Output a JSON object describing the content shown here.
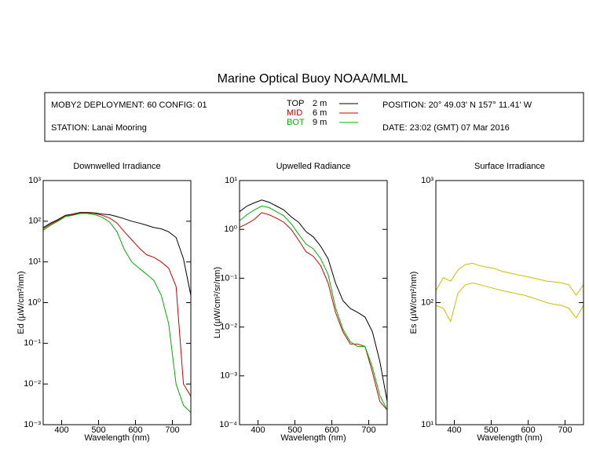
{
  "title": "Marine Optical Buoy NOAA/MLML",
  "info": {
    "deployment": "MOBY2 DEPLOYMENT: 60 CONFIG: 01",
    "station": "STATION: Lanai Mooring",
    "position": "POSITION: 20° 49.03' N  157° 11.41' W",
    "date": "DATE: 23:02 (GMT) 07 Mar 2016"
  },
  "legend": [
    {
      "name": "TOP",
      "depth": "2 m",
      "color": "#000000"
    },
    {
      "name": "MID",
      "depth": "6 m",
      "color": "#cc0000"
    },
    {
      "name": "BOT",
      "depth": "9 m",
      "color": "#00b000"
    }
  ],
  "chart_data": [
    {
      "type": "line",
      "title": "Downwelled Irradiance",
      "x_label": "Wavelength (nm)",
      "y_label": "Ed  (µW/cm²/nm)",
      "log_y": true,
      "x": [
        350,
        370,
        390,
        410,
        430,
        450,
        470,
        490,
        510,
        530,
        550,
        570,
        590,
        610,
        630,
        650,
        670,
        690,
        710,
        730,
        750
      ],
      "xlim": [
        350,
        750
      ],
      "xticks": [
        400,
        500,
        600,
        700
      ],
      "ylim": [
        0.001,
        1000
      ],
      "yticks": [
        {
          "value": 1000,
          "label": "10³"
        },
        {
          "value": 100,
          "label": "10²"
        },
        {
          "value": 10,
          "label": "10¹"
        },
        {
          "value": 1,
          "label": "10⁰"
        },
        {
          "value": 0.1,
          "label": "10⁻¹"
        },
        {
          "value": 0.01,
          "label": "10⁻²"
        },
        {
          "value": 0.001,
          "label": "10⁻³"
        }
      ],
      "series": [
        {
          "color": "#000000",
          "values": [
            70,
            90,
            110,
            140,
            150,
            165,
            165,
            160,
            150,
            145,
            130,
            115,
            100,
            90,
            80,
            70,
            65,
            55,
            40,
            12,
            1.5
          ]
        },
        {
          "color": "#cc0000",
          "values": [
            65,
            85,
            105,
            135,
            145,
            160,
            160,
            155,
            140,
            120,
            90,
            55,
            35,
            22,
            15,
            13,
            10,
            7,
            2.5,
            0.01,
            0.005
          ]
        },
        {
          "color": "#00b000",
          "values": [
            60,
            80,
            100,
            130,
            140,
            155,
            155,
            145,
            125,
            95,
            55,
            20,
            10,
            7,
            5,
            3.5,
            1.5,
            0.3,
            0.01,
            0.003,
            0.002
          ]
        }
      ]
    },
    {
      "type": "line",
      "title": "Upwelled Radiance",
      "x_label": "Wavelength (nm)",
      "y_label": "Lu  (µW/cm²/sr/nm)",
      "log_y": true,
      "x": [
        350,
        370,
        390,
        410,
        430,
        450,
        470,
        490,
        510,
        530,
        550,
        570,
        590,
        610,
        630,
        650,
        670,
        690,
        710,
        730,
        750
      ],
      "xlim": [
        350,
        750
      ],
      "xticks": [
        400,
        500,
        600,
        700
      ],
      "ylim": [
        0.0001,
        10
      ],
      "yticks": [
        {
          "value": 10,
          "label": "10¹"
        },
        {
          "value": 1,
          "label": "10⁰"
        },
        {
          "value": 0.1,
          "label": "10⁻¹"
        },
        {
          "value": 0.01,
          "label": "10⁻²"
        },
        {
          "value": 0.001,
          "label": "10⁻³"
        },
        {
          "value": 0.0001,
          "label": "10⁻⁴"
        }
      ],
      "series": [
        {
          "color": "#000000",
          "values": [
            2.3,
            3.0,
            3.5,
            4.0,
            3.6,
            3.0,
            2.5,
            1.8,
            1.4,
            0.9,
            0.7,
            0.45,
            0.25,
            0.08,
            0.035,
            0.024,
            0.02,
            0.016,
            0.008,
            0.002,
            0.0003
          ]
        },
        {
          "color": "#cc0000",
          "values": [
            1.1,
            1.3,
            1.6,
            2.2,
            2.0,
            1.7,
            1.4,
            1.0,
            0.6,
            0.35,
            0.28,
            0.18,
            0.08,
            0.02,
            0.008,
            0.0045,
            0.0045,
            0.004,
            0.0012,
            0.0003,
            0.0002
          ]
        },
        {
          "color": "#00b000",
          "values": [
            1.5,
            2.0,
            2.5,
            3.0,
            2.8,
            2.3,
            1.9,
            1.3,
            0.8,
            0.5,
            0.4,
            0.25,
            0.12,
            0.025,
            0.009,
            0.005,
            0.004,
            0.004,
            0.0015,
            0.0004,
            0.0002
          ]
        }
      ]
    },
    {
      "type": "line",
      "title": "Surface Irradiance",
      "x_label": "Wavelength (nm)",
      "y_label": "Es  (µW/cm²/nm)",
      "log_y": true,
      "x": [
        350,
        370,
        390,
        410,
        430,
        450,
        470,
        490,
        510,
        530,
        550,
        570,
        590,
        610,
        630,
        650,
        670,
        690,
        710,
        730,
        750
      ],
      "xlim": [
        350,
        750
      ],
      "xticks": [
        400,
        500,
        600,
        700
      ],
      "ylim": [
        10,
        1000
      ],
      "yticks": [
        {
          "value": 1000,
          "label": "10³"
        },
        {
          "value": 100,
          "label": "10²"
        },
        {
          "value": 10,
          "label": "10¹"
        }
      ],
      "series": [
        {
          "color": "#c8c000",
          "values": [
            125,
            160,
            150,
            185,
            205,
            210,
            200,
            195,
            190,
            180,
            175,
            170,
            165,
            160,
            155,
            150,
            148,
            145,
            140,
            115,
            140
          ]
        },
        {
          "color": "#c8c000",
          "values": [
            95,
            90,
            70,
            120,
            140,
            145,
            140,
            135,
            130,
            125,
            122,
            118,
            115,
            110,
            105,
            100,
            97,
            95,
            90,
            75,
            95
          ]
        }
      ]
    }
  ]
}
